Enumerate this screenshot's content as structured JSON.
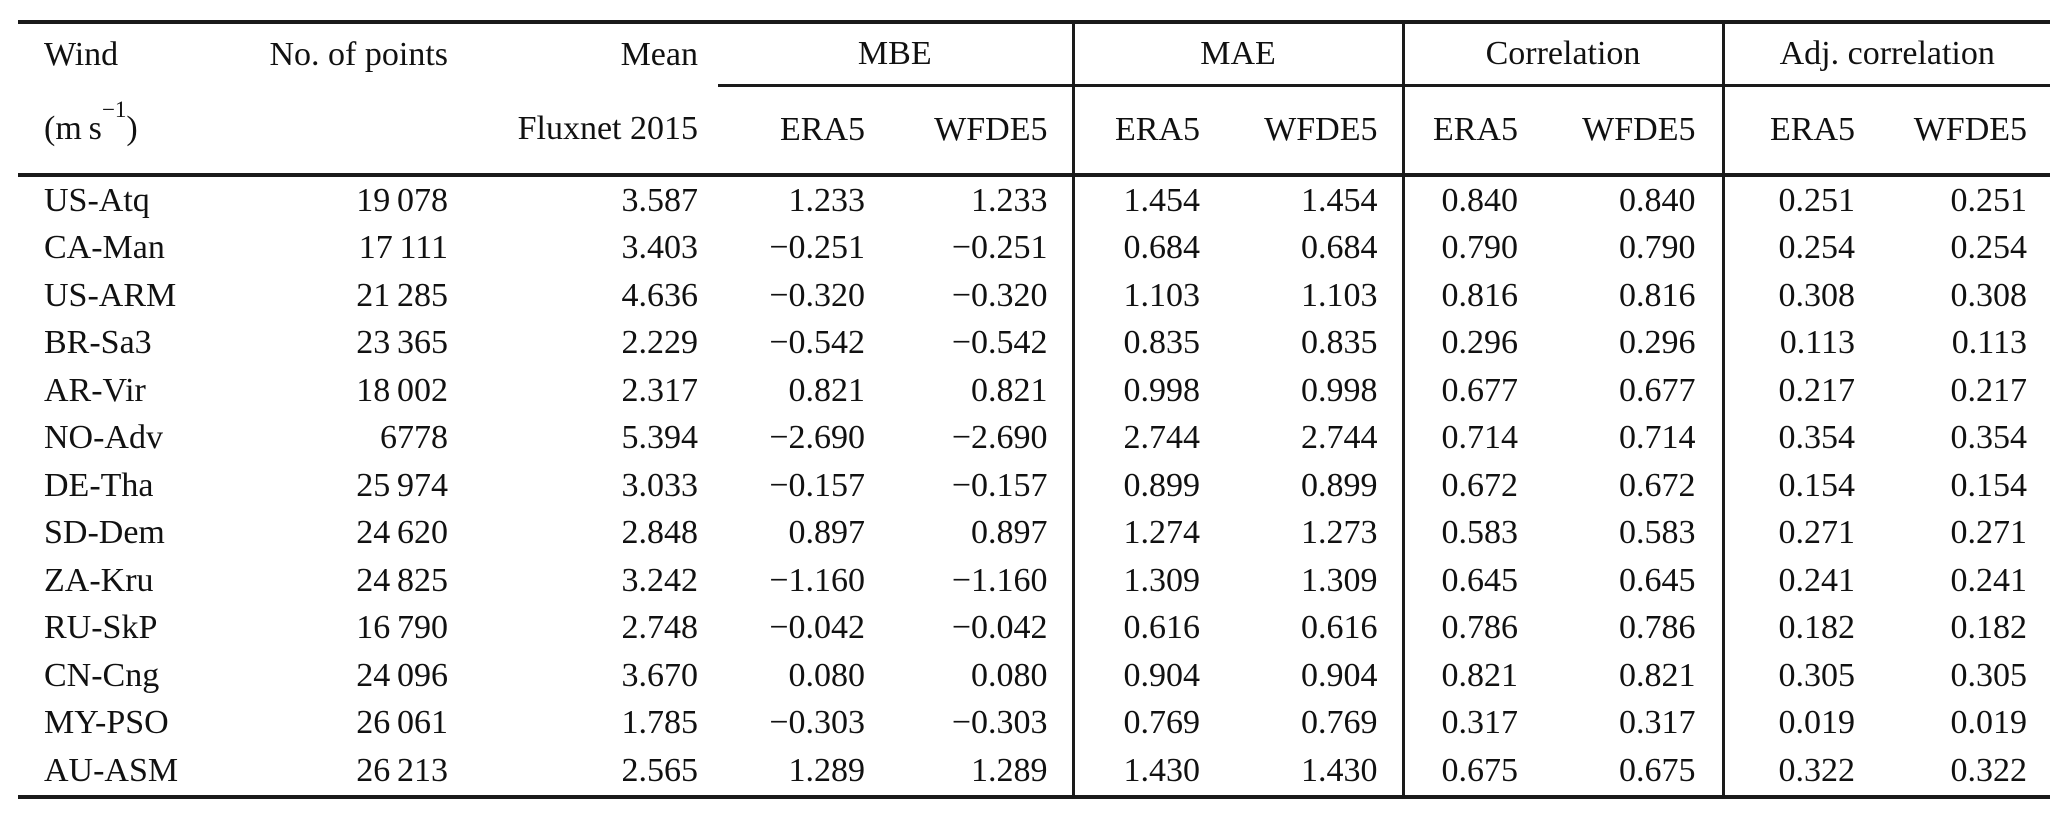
{
  "table": {
    "header": {
      "wind": "Wind",
      "wind_unit_prefix": "(m s",
      "wind_unit_sup": "−1",
      "wind_unit_suffix": ")",
      "points": "No. of points",
      "mean": "Mean",
      "mean_sub": "Fluxnet 2015",
      "groups": [
        "MBE",
        "MAE",
        "Correlation",
        "Adj. correlation"
      ],
      "sub_era5": "ERA5",
      "sub_wfde5": "WFDE5"
    },
    "columns": [
      "site",
      "points",
      "mean",
      "mbe_era5",
      "mbe_wfde5",
      "mae_era5",
      "mae_wfde5",
      "corr_era5",
      "corr_wfde5",
      "adj_era5",
      "adj_wfde5"
    ],
    "rows": [
      [
        "US-Atq",
        "19 078",
        "3.587",
        "1.233",
        "1.233",
        "1.454",
        "1.454",
        "0.840",
        "0.840",
        "0.251",
        "0.251"
      ],
      [
        "CA-Man",
        "17 111",
        "3.403",
        "−0.251",
        "−0.251",
        "0.684",
        "0.684",
        "0.790",
        "0.790",
        "0.254",
        "0.254"
      ],
      [
        "US-ARM",
        "21 285",
        "4.636",
        "−0.320",
        "−0.320",
        "1.103",
        "1.103",
        "0.816",
        "0.816",
        "0.308",
        "0.308"
      ],
      [
        "BR-Sa3",
        "23 365",
        "2.229",
        "−0.542",
        "−0.542",
        "0.835",
        "0.835",
        "0.296",
        "0.296",
        "0.113",
        "0.113"
      ],
      [
        "AR-Vir",
        "18 002",
        "2.317",
        "0.821",
        "0.821",
        "0.998",
        "0.998",
        "0.677",
        "0.677",
        "0.217",
        "0.217"
      ],
      [
        "NO-Adv",
        "6778",
        "5.394",
        "−2.690",
        "−2.690",
        "2.744",
        "2.744",
        "0.714",
        "0.714",
        "0.354",
        "0.354"
      ],
      [
        "DE-Tha",
        "25 974",
        "3.033",
        "−0.157",
        "−0.157",
        "0.899",
        "0.899",
        "0.672",
        "0.672",
        "0.154",
        "0.154"
      ],
      [
        "SD-Dem",
        "24 620",
        "2.848",
        "0.897",
        "0.897",
        "1.274",
        "1.273",
        "0.583",
        "0.583",
        "0.271",
        "0.271"
      ],
      [
        "ZA-Kru",
        "24 825",
        "3.242",
        "−1.160",
        "−1.160",
        "1.309",
        "1.309",
        "0.645",
        "0.645",
        "0.241",
        "0.241"
      ],
      [
        "RU-SkP",
        "16 790",
        "2.748",
        "−0.042",
        "−0.042",
        "0.616",
        "0.616",
        "0.786",
        "0.786",
        "0.182",
        "0.182"
      ],
      [
        "CN-Cng",
        "24 096",
        "3.670",
        "0.080",
        "0.080",
        "0.904",
        "0.904",
        "0.821",
        "0.821",
        "0.305",
        "0.305"
      ],
      [
        "MY-PSO",
        "26 061",
        "1.785",
        "−0.303",
        "−0.303",
        "0.769",
        "0.769",
        "0.317",
        "0.317",
        "0.019",
        "0.019"
      ],
      [
        "AU-ASM",
        "26 213",
        "2.565",
        "1.289",
        "1.289",
        "1.430",
        "1.430",
        "0.675",
        "0.675",
        "0.322",
        "0.322"
      ]
    ]
  }
}
